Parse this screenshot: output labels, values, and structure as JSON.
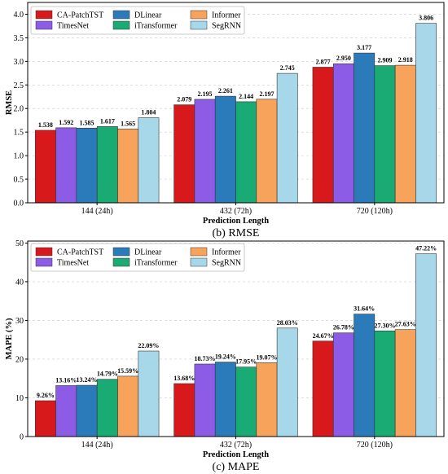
{
  "captions": [
    "(b) RMSE",
    "(c) MAPE"
  ],
  "chart_data": [
    {
      "type": "bar",
      "caption": "(b) RMSE",
      "xlabel": "Prediction Length",
      "ylabel": "RMSE",
      "categories": [
        "144 (24h)",
        "432 (72h)",
        "720 (120h)"
      ],
      "ylim": [
        0,
        4.25
      ],
      "yticks": [
        0.0,
        0.5,
        1.0,
        1.5,
        2.0,
        2.5,
        3.0,
        3.5,
        4.0
      ],
      "ytick_labels": [
        "0.0",
        "0.5",
        "1.0",
        "1.5",
        "2.0",
        "2.5",
        "3.0",
        "3.5",
        "4.0"
      ],
      "grid": true,
      "legend_position": "top-left",
      "series": [
        {
          "name": "CA-PatchTST",
          "color": "#d7191c",
          "values": [
            1.538,
            2.079,
            2.877
          ],
          "labels": [
            "1.538",
            "2.079",
            "2.877"
          ]
        },
        {
          "name": "TimesNet",
          "color": "#8c5ce6",
          "values": [
            1.592,
            2.195,
            2.95
          ],
          "labels": [
            "1.592",
            "2.195",
            "2.950"
          ]
        },
        {
          "name": "DLinear",
          "color": "#2b7bba",
          "values": [
            1.585,
            2.261,
            3.177
          ],
          "labels": [
            "1.585",
            "2.261",
            "3.177"
          ]
        },
        {
          "name": "iTransformer",
          "color": "#1aaa74",
          "values": [
            1.617,
            2.144,
            2.909
          ],
          "labels": [
            "1.617",
            "2.144",
            "2.909"
          ]
        },
        {
          "name": "Informer",
          "color": "#f7a35c",
          "values": [
            1.565,
            2.197,
            2.918
          ],
          "labels": [
            "1.565",
            "2.197",
            "2.918"
          ]
        },
        {
          "name": "SegRNN",
          "color": "#a6d8ea",
          "values": [
            1.804,
            2.745,
            3.806
          ],
          "labels": [
            "1.804",
            "2.745",
            "3.806"
          ]
        }
      ]
    },
    {
      "type": "bar",
      "caption": "(c) MAPE",
      "xlabel": "Prediction Length",
      "ylabel": "MAPE (%)",
      "categories": [
        "144 (24h)",
        "432 (72h)",
        "720 (120h)"
      ],
      "ylim": [
        0,
        50.5
      ],
      "yticks": [
        0,
        10,
        20,
        30,
        40,
        50
      ],
      "ytick_labels": [
        "0",
        "10",
        "20",
        "30",
        "40",
        "50"
      ],
      "grid": true,
      "legend_position": "top-left",
      "series": [
        {
          "name": "CA-PatchTST",
          "color": "#d7191c",
          "values": [
            9.26,
            13.68,
            24.67
          ],
          "labels": [
            "9.26%",
            "13.68%",
            "24.67%"
          ]
        },
        {
          "name": "TimesNet",
          "color": "#8c5ce6",
          "values": [
            13.16,
            18.73,
            26.78
          ],
          "labels": [
            "13.16%",
            "18.73%",
            "26.78%"
          ]
        },
        {
          "name": "DLinear",
          "color": "#2b7bba",
          "values": [
            13.24,
            19.24,
            31.64
          ],
          "labels": [
            "13.24%",
            "19.24%",
            "31.64%"
          ]
        },
        {
          "name": "iTransformer",
          "color": "#1aaa74",
          "values": [
            14.79,
            17.95,
            27.3
          ],
          "labels": [
            "14.79%",
            "17.95%",
            "27.30%"
          ]
        },
        {
          "name": "Informer",
          "color": "#f7a35c",
          "values": [
            15.59,
            19.07,
            27.63
          ],
          "labels": [
            "15.59%",
            "19.07%",
            "27.63%"
          ]
        },
        {
          "name": "SegRNN",
          "color": "#a6d8ea",
          "values": [
            22.09,
            28.03,
            47.22
          ],
          "labels": [
            "22.09%",
            "28.03%",
            "47.22%"
          ]
        }
      ]
    }
  ]
}
